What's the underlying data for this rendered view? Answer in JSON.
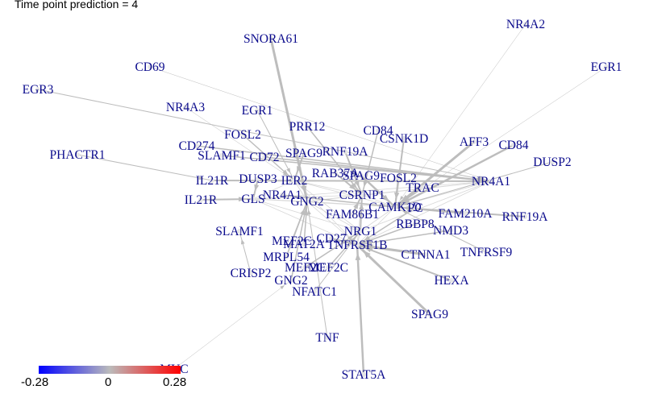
{
  "title": "Time point prediction = 4",
  "colorbar": {
    "min_label": "-0.28",
    "mid_label": "0",
    "max_label": "0.28",
    "colors": [
      "#0000ff",
      "#bbbbbb",
      "#ff0000"
    ]
  },
  "edge_color": "#bdbdbd",
  "label_color": "#0a0a8c",
  "nodes": [
    {
      "id": "n0",
      "label": "SNORA61"
    },
    {
      "id": "n1",
      "label": "NR4A2"
    },
    {
      "id": "n2",
      "label": "EGR1"
    },
    {
      "id": "n3",
      "label": "CD69"
    },
    {
      "id": "n4",
      "label": "EGR3"
    },
    {
      "id": "n5",
      "label": "NR4A3"
    },
    {
      "id": "n6",
      "label": "EGR1"
    },
    {
      "id": "n7",
      "label": "PRR12"
    },
    {
      "id": "n8",
      "label": "CD84"
    },
    {
      "id": "n9",
      "label": "FOSL2"
    },
    {
      "id": "n10",
      "label": "CSNK1D"
    },
    {
      "id": "n11",
      "label": "AFF3"
    },
    {
      "id": "n12",
      "label": "CD84"
    },
    {
      "id": "n13",
      "label": "CD274"
    },
    {
      "id": "n14",
      "label": "SLAMF1"
    },
    {
      "id": "n15",
      "label": "CD72"
    },
    {
      "id": "n16",
      "label": "SPAG9"
    },
    {
      "id": "n17",
      "label": "RNF19A"
    },
    {
      "id": "n18",
      "label": "PHACTR1"
    },
    {
      "id": "n19",
      "label": "DUSP2"
    },
    {
      "id": "n20",
      "label": "RAB37A"
    },
    {
      "id": "n21",
      "label": "SPAG9"
    },
    {
      "id": "n22",
      "label": "FOSL2"
    },
    {
      "id": "n23",
      "label": "IL21R"
    },
    {
      "id": "n24",
      "label": "DUSP3"
    },
    {
      "id": "n25",
      "label": "IER2"
    },
    {
      "id": "n26",
      "label": "NR4A1"
    },
    {
      "id": "n27",
      "label": "TRAC"
    },
    {
      "id": "n28",
      "label": "GLS"
    },
    {
      "id": "n29",
      "label": "NR4A1"
    },
    {
      "id": "n30",
      "label": "CSRNP1"
    },
    {
      "id": "n31",
      "label": "IL21R"
    },
    {
      "id": "n32",
      "label": "GNG2"
    },
    {
      "id": "n33",
      "label": "CAMK1D"
    },
    {
      "id": "n34",
      "label": "PC"
    },
    {
      "id": "n35",
      "label": "FAM86B1"
    },
    {
      "id": "n36",
      "label": "FAM210A"
    },
    {
      "id": "n37",
      "label": "RNF19A"
    },
    {
      "id": "n38",
      "label": "RBBP8"
    },
    {
      "id": "n39",
      "label": "SLAMF1"
    },
    {
      "id": "n40",
      "label": "NRG1"
    },
    {
      "id": "n41",
      "label": "NMD3"
    },
    {
      "id": "n42",
      "label": "CD27"
    },
    {
      "id": "n43",
      "label": "MEF2C"
    },
    {
      "id": "n44",
      "label": "MAT2A"
    },
    {
      "id": "n45",
      "label": "TNFRSF1B"
    },
    {
      "id": "n46",
      "label": "TNFRSF9"
    },
    {
      "id": "n47",
      "label": "MRPL54"
    },
    {
      "id": "n48",
      "label": "CTNNA1"
    },
    {
      "id": "n49",
      "label": "MEF2C"
    },
    {
      "id": "n50",
      "label": "MEF2C"
    },
    {
      "id": "n51",
      "label": "CRISP2"
    },
    {
      "id": "n52",
      "label": "HEXA"
    },
    {
      "id": "n53",
      "label": "GNG2"
    },
    {
      "id": "n54",
      "label": "NFATC1"
    },
    {
      "id": "n55",
      "label": "SPAG9"
    },
    {
      "id": "n56",
      "label": "TNF"
    },
    {
      "id": "n57",
      "label": "MYC"
    },
    {
      "id": "n58",
      "label": "STAT5A"
    }
  ],
  "edges": [
    {
      "from": "n0",
      "to": "n32",
      "weight": 3
    },
    {
      "from": "n1",
      "to": "n33",
      "weight": 0.5
    },
    {
      "from": "n2",
      "to": "n33",
      "weight": 0.5
    },
    {
      "from": "n4",
      "to": "n26",
      "weight": 1
    },
    {
      "from": "n18",
      "to": "n23",
      "weight": 1
    },
    {
      "from": "n3",
      "to": "n26",
      "weight": 0.5
    },
    {
      "from": "n5",
      "to": "n25",
      "weight": 0.5
    },
    {
      "from": "n6",
      "to": "n25",
      "weight": 1
    },
    {
      "from": "n7",
      "to": "n30",
      "weight": 1.5
    },
    {
      "from": "n8",
      "to": "n30",
      "weight": 1.5
    },
    {
      "from": "n11",
      "to": "n33",
      "weight": 3
    },
    {
      "from": "n12",
      "to": "n33",
      "weight": 2.5
    },
    {
      "from": "n19",
      "to": "n33",
      "weight": 1
    },
    {
      "from": "n36",
      "to": "n33",
      "weight": 2
    },
    {
      "from": "n37",
      "to": "n33",
      "weight": 2
    },
    {
      "from": "n46",
      "to": "n33",
      "weight": 1
    },
    {
      "from": "n52",
      "to": "n45",
      "weight": 2
    },
    {
      "from": "n55",
      "to": "n45",
      "weight": 3
    },
    {
      "from": "n58",
      "to": "n45",
      "weight": 2.5
    },
    {
      "from": "n56",
      "to": "n32",
      "weight": 1
    },
    {
      "from": "n51",
      "to": "n39",
      "weight": 1
    },
    {
      "from": "n54",
      "to": "n40",
      "weight": 1
    },
    {
      "from": "n48",
      "to": "n45",
      "weight": 3
    },
    {
      "from": "n31",
      "to": "n28",
      "weight": 2
    },
    {
      "from": "n23",
      "to": "n26",
      "weight": 2
    },
    {
      "from": "n14",
      "to": "n26",
      "weight": 1.5
    },
    {
      "from": "n13",
      "to": "n26",
      "weight": 1.5
    },
    {
      "from": "n9",
      "to": "n25",
      "weight": 1.5
    },
    {
      "from": "n10",
      "to": "n33",
      "weight": 2
    },
    {
      "from": "n21",
      "to": "n33",
      "weight": 2.5
    },
    {
      "from": "n22",
      "to": "n33",
      "weight": 2
    },
    {
      "from": "n20",
      "to": "n30",
      "weight": 2
    },
    {
      "from": "n29",
      "to": "n33",
      "weight": 1.5
    },
    {
      "from": "n27",
      "to": "n33",
      "weight": 1.5
    },
    {
      "from": "n38",
      "to": "n45",
      "weight": 1.5
    },
    {
      "from": "n41",
      "to": "n45",
      "weight": 1.5
    },
    {
      "from": "n35",
      "to": "n30",
      "weight": 2
    },
    {
      "from": "n40",
      "to": "n30",
      "weight": 2
    },
    {
      "from": "n44",
      "to": "n32",
      "weight": 1.5
    },
    {
      "from": "n43",
      "to": "n32",
      "weight": 1.5
    },
    {
      "from": "n47",
      "to": "n32",
      "weight": 1.5
    },
    {
      "from": "n49",
      "to": "n40",
      "weight": 1.5
    },
    {
      "from": "n50",
      "to": "n40",
      "weight": 1.5
    },
    {
      "from": "n53",
      "to": "n32",
      "weight": 1.5
    },
    {
      "from": "n57",
      "to": "n53",
      "weight": 0.5
    },
    {
      "from": "n16",
      "to": "n25",
      "weight": 2
    },
    {
      "from": "n17",
      "to": "n30",
      "weight": 2
    },
    {
      "from": "n15",
      "to": "n26",
      "weight": 1.5
    },
    {
      "from": "n24",
      "to": "n28",
      "weight": 2
    },
    {
      "from": "n34",
      "to": "n45",
      "weight": 1.5
    },
    {
      "from": "n42",
      "to": "n45",
      "weight": 2
    }
  ]
}
